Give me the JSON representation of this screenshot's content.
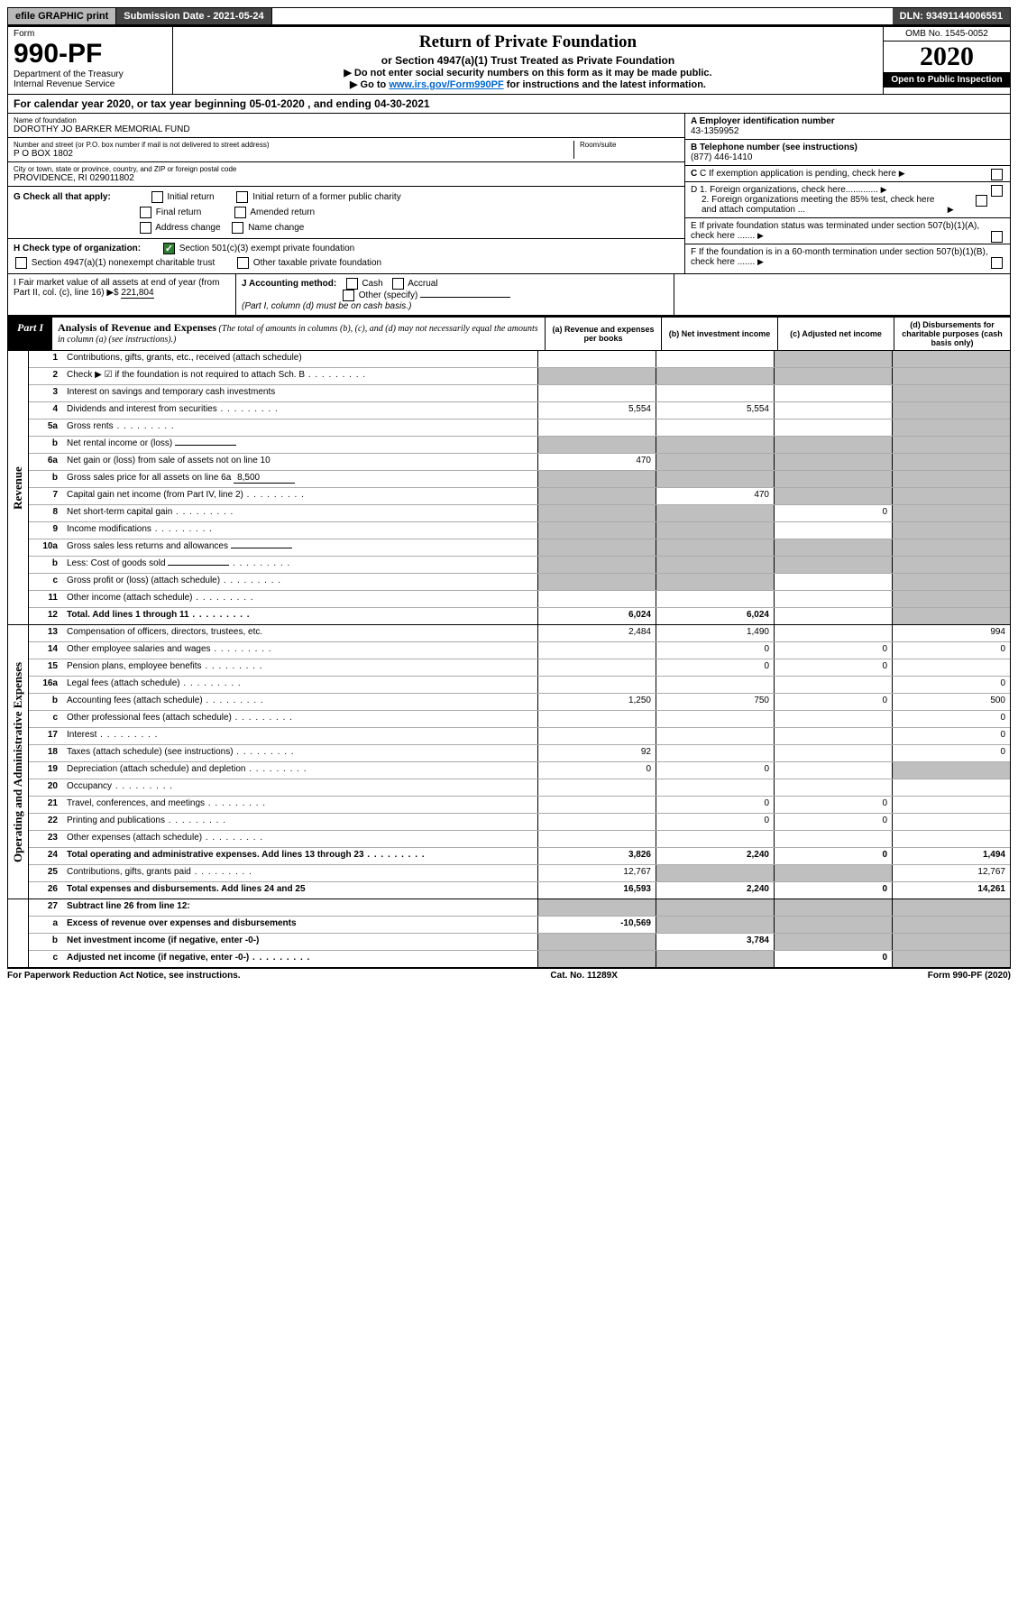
{
  "topbar": {
    "efile": "efile GRAPHIC print",
    "submission": "Submission Date - 2021-05-24",
    "dln": "DLN: 93491144006551"
  },
  "header": {
    "form_label": "Form",
    "form_no": "990-PF",
    "dept": "Department of the Treasury",
    "irs": "Internal Revenue Service",
    "title": "Return of Private Foundation",
    "sub1": "or Section 4947(a)(1) Trust Treated as Private Foundation",
    "sub2a": "▶ Do not enter social security numbers on this form as it may be made public.",
    "sub2b_pre": "▶ Go to ",
    "sub2b_link": "www.irs.gov/Form990PF",
    "sub2b_post": " for instructions and the latest information.",
    "omb": "OMB No. 1545-0052",
    "year": "2020",
    "open": "Open to Public Inspection"
  },
  "calendar": "For calendar year 2020, or tax year beginning 05-01-2020          , and ending 04-30-2021",
  "info": {
    "name_lbl": "Name of foundation",
    "name": "DOROTHY JO BARKER MEMORIAL FUND",
    "addr_lbl": "Number and street (or P.O. box number if mail is not delivered to street address)",
    "addr": "P O BOX 1802",
    "room_lbl": "Room/suite",
    "city_lbl": "City or town, state or province, country, and ZIP or foreign postal code",
    "city": "PROVIDENCE, RI  029011802",
    "a_lbl": "A Employer identification number",
    "a_val": "43-1359952",
    "b_lbl": "B Telephone number (see instructions)",
    "b_val": "(877) 446-1410",
    "c_lbl": "C If exemption application is pending, check here",
    "d1": "D 1. Foreign organizations, check here.............",
    "d2": "2. Foreign organizations meeting the 85% test, check here and attach computation ...",
    "e_lbl": "E  If private foundation status was terminated under section 507(b)(1)(A), check here .......",
    "f_lbl": "F  If the foundation is in a 60-month termination under section 507(b)(1)(B), check here .......",
    "g_lbl": "G Check all that apply:",
    "g_opts": [
      "Initial return",
      "Initial return of a former public charity",
      "Final return",
      "Amended return",
      "Address change",
      "Name change"
    ],
    "h_lbl": "H Check type of organization:",
    "h1": "Section 501(c)(3) exempt private foundation",
    "h2": "Section 4947(a)(1) nonexempt charitable trust",
    "h3": "Other taxable private foundation",
    "i_lbl": "I Fair market value of all assets at end of year (from Part II, col. (c), line 16) ▶$",
    "i_val": "221,804",
    "j_lbl": "J Accounting method:",
    "j_cash": "Cash",
    "j_accrual": "Accrual",
    "j_other": "Other (specify)",
    "j_note": "(Part I, column (d) must be on cash basis.)"
  },
  "part1": {
    "label": "Part I",
    "title": "Analysis of Revenue and Expenses",
    "note": " (The total of amounts in columns (b), (c), and (d) may not necessarily equal the amounts in column (a) (see instructions).)",
    "cols": {
      "a": "(a) Revenue and expenses per books",
      "b": "(b) Net investment income",
      "c": "(c) Adjusted net income",
      "d": "(d) Disbursements for charitable purposes (cash basis only)"
    }
  },
  "sections": {
    "revenue": "Revenue",
    "expenses": "Operating and Administrative Expenses"
  },
  "rows": [
    {
      "n": "1",
      "d": "Contributions, gifts, grants, etc., received (attach schedule)",
      "a": "",
      "b": "",
      "c": "G",
      "dd": "G"
    },
    {
      "n": "2",
      "d": "Check ▶ ☑ if the foundation is not required to attach Sch. B",
      "dots": true,
      "a": "G",
      "b": "G",
      "c": "G",
      "dd": "G"
    },
    {
      "n": "3",
      "d": "Interest on savings and temporary cash investments",
      "a": "",
      "b": "",
      "c": "",
      "dd": "G"
    },
    {
      "n": "4",
      "d": "Dividends and interest from securities",
      "dots": true,
      "a": "5,554",
      "b": "5,554",
      "c": "",
      "dd": "G"
    },
    {
      "n": "5a",
      "d": "Gross rents",
      "dots": true,
      "a": "",
      "b": "",
      "c": "",
      "dd": "G"
    },
    {
      "n": "b",
      "d": "Net rental income or (loss)",
      "inline": "",
      "a": "G",
      "b": "G",
      "c": "G",
      "dd": "G"
    },
    {
      "n": "6a",
      "d": "Net gain or (loss) from sale of assets not on line 10",
      "a": "470",
      "b": "G",
      "c": "G",
      "dd": "G"
    },
    {
      "n": "b",
      "d": "Gross sales price for all assets on line 6a",
      "inline": "8,500",
      "a": "G",
      "b": "G",
      "c": "G",
      "dd": "G"
    },
    {
      "n": "7",
      "d": "Capital gain net income (from Part IV, line 2)",
      "dots": true,
      "a": "G",
      "b": "470",
      "c": "G",
      "dd": "G"
    },
    {
      "n": "8",
      "d": "Net short-term capital gain",
      "dots": true,
      "a": "G",
      "b": "G",
      "c": "0",
      "dd": "G"
    },
    {
      "n": "9",
      "d": "Income modifications",
      "dots": true,
      "a": "G",
      "b": "G",
      "c": "",
      "dd": "G"
    },
    {
      "n": "10a",
      "d": "Gross sales less returns and allowances",
      "inline": "",
      "a": "G",
      "b": "G",
      "c": "G",
      "dd": "G"
    },
    {
      "n": "b",
      "d": "Less: Cost of goods sold",
      "dots": true,
      "inline": "",
      "a": "G",
      "b": "G",
      "c": "G",
      "dd": "G"
    },
    {
      "n": "c",
      "d": "Gross profit or (loss) (attach schedule)",
      "dots": true,
      "a": "G",
      "b": "G",
      "c": "",
      "dd": "G"
    },
    {
      "n": "11",
      "d": "Other income (attach schedule)",
      "dots": true,
      "a": "",
      "b": "",
      "c": "",
      "dd": "G"
    },
    {
      "n": "12",
      "d": "Total. Add lines 1 through 11",
      "dots": true,
      "bold": true,
      "a": "6,024",
      "b": "6,024",
      "c": "",
      "dd": "G"
    }
  ],
  "rows2": [
    {
      "n": "13",
      "d": "Compensation of officers, directors, trustees, etc.",
      "a": "2,484",
      "b": "1,490",
      "c": "",
      "dd": "994"
    },
    {
      "n": "14",
      "d": "Other employee salaries and wages",
      "dots": true,
      "a": "",
      "b": "0",
      "c": "0",
      "dd": "0"
    },
    {
      "n": "15",
      "d": "Pension plans, employee benefits",
      "dots": true,
      "a": "",
      "b": "0",
      "c": "0",
      "dd": ""
    },
    {
      "n": "16a",
      "d": "Legal fees (attach schedule)",
      "dots": true,
      "a": "",
      "b": "",
      "c": "",
      "dd": "0"
    },
    {
      "n": "b",
      "d": "Accounting fees (attach schedule)",
      "dots": true,
      "a": "1,250",
      "b": "750",
      "c": "0",
      "dd": "500"
    },
    {
      "n": "c",
      "d": "Other professional fees (attach schedule)",
      "dots": true,
      "a": "",
      "b": "",
      "c": "",
      "dd": "0"
    },
    {
      "n": "17",
      "d": "Interest",
      "dots": true,
      "a": "",
      "b": "",
      "c": "",
      "dd": "0"
    },
    {
      "n": "18",
      "d": "Taxes (attach schedule) (see instructions)",
      "dots": true,
      "a": "92",
      "b": "",
      "c": "",
      "dd": "0"
    },
    {
      "n": "19",
      "d": "Depreciation (attach schedule) and depletion",
      "dots": true,
      "a": "0",
      "b": "0",
      "c": "",
      "dd": "G"
    },
    {
      "n": "20",
      "d": "Occupancy",
      "dots": true,
      "a": "",
      "b": "",
      "c": "",
      "dd": ""
    },
    {
      "n": "21",
      "d": "Travel, conferences, and meetings",
      "dots": true,
      "a": "",
      "b": "0",
      "c": "0",
      "dd": ""
    },
    {
      "n": "22",
      "d": "Printing and publications",
      "dots": true,
      "a": "",
      "b": "0",
      "c": "0",
      "dd": ""
    },
    {
      "n": "23",
      "d": "Other expenses (attach schedule)",
      "dots": true,
      "a": "",
      "b": "",
      "c": "",
      "dd": ""
    },
    {
      "n": "24",
      "d": "Total operating and administrative expenses. Add lines 13 through 23",
      "dots": true,
      "bold": true,
      "a": "3,826",
      "b": "2,240",
      "c": "0",
      "dd": "1,494"
    },
    {
      "n": "25",
      "d": "Contributions, gifts, grants paid",
      "dots": true,
      "a": "12,767",
      "b": "G",
      "c": "G",
      "dd": "12,767"
    },
    {
      "n": "26",
      "d": "Total expenses and disbursements. Add lines 24 and 25",
      "bold": true,
      "a": "16,593",
      "b": "2,240",
      "c": "0",
      "dd": "14,261"
    }
  ],
  "rows3": [
    {
      "n": "27",
      "d": "Subtract line 26 from line 12:",
      "bold": true,
      "a": "G",
      "b": "G",
      "c": "G",
      "dd": "G"
    },
    {
      "n": "a",
      "d": "Excess of revenue over expenses and disbursements",
      "bold": true,
      "a": "-10,569",
      "b": "G",
      "c": "G",
      "dd": "G"
    },
    {
      "n": "b",
      "d": "Net investment income (if negative, enter -0-)",
      "bold": true,
      "a": "G",
      "b": "3,784",
      "c": "G",
      "dd": "G"
    },
    {
      "n": "c",
      "d": "Adjusted net income (if negative, enter -0-)",
      "bold": true,
      "dots": true,
      "a": "G",
      "b": "G",
      "c": "0",
      "dd": "G"
    }
  ],
  "footer": {
    "left": "For Paperwork Reduction Act Notice, see instructions.",
    "mid": "Cat. No. 11289X",
    "right": "Form 990-PF (2020)"
  }
}
